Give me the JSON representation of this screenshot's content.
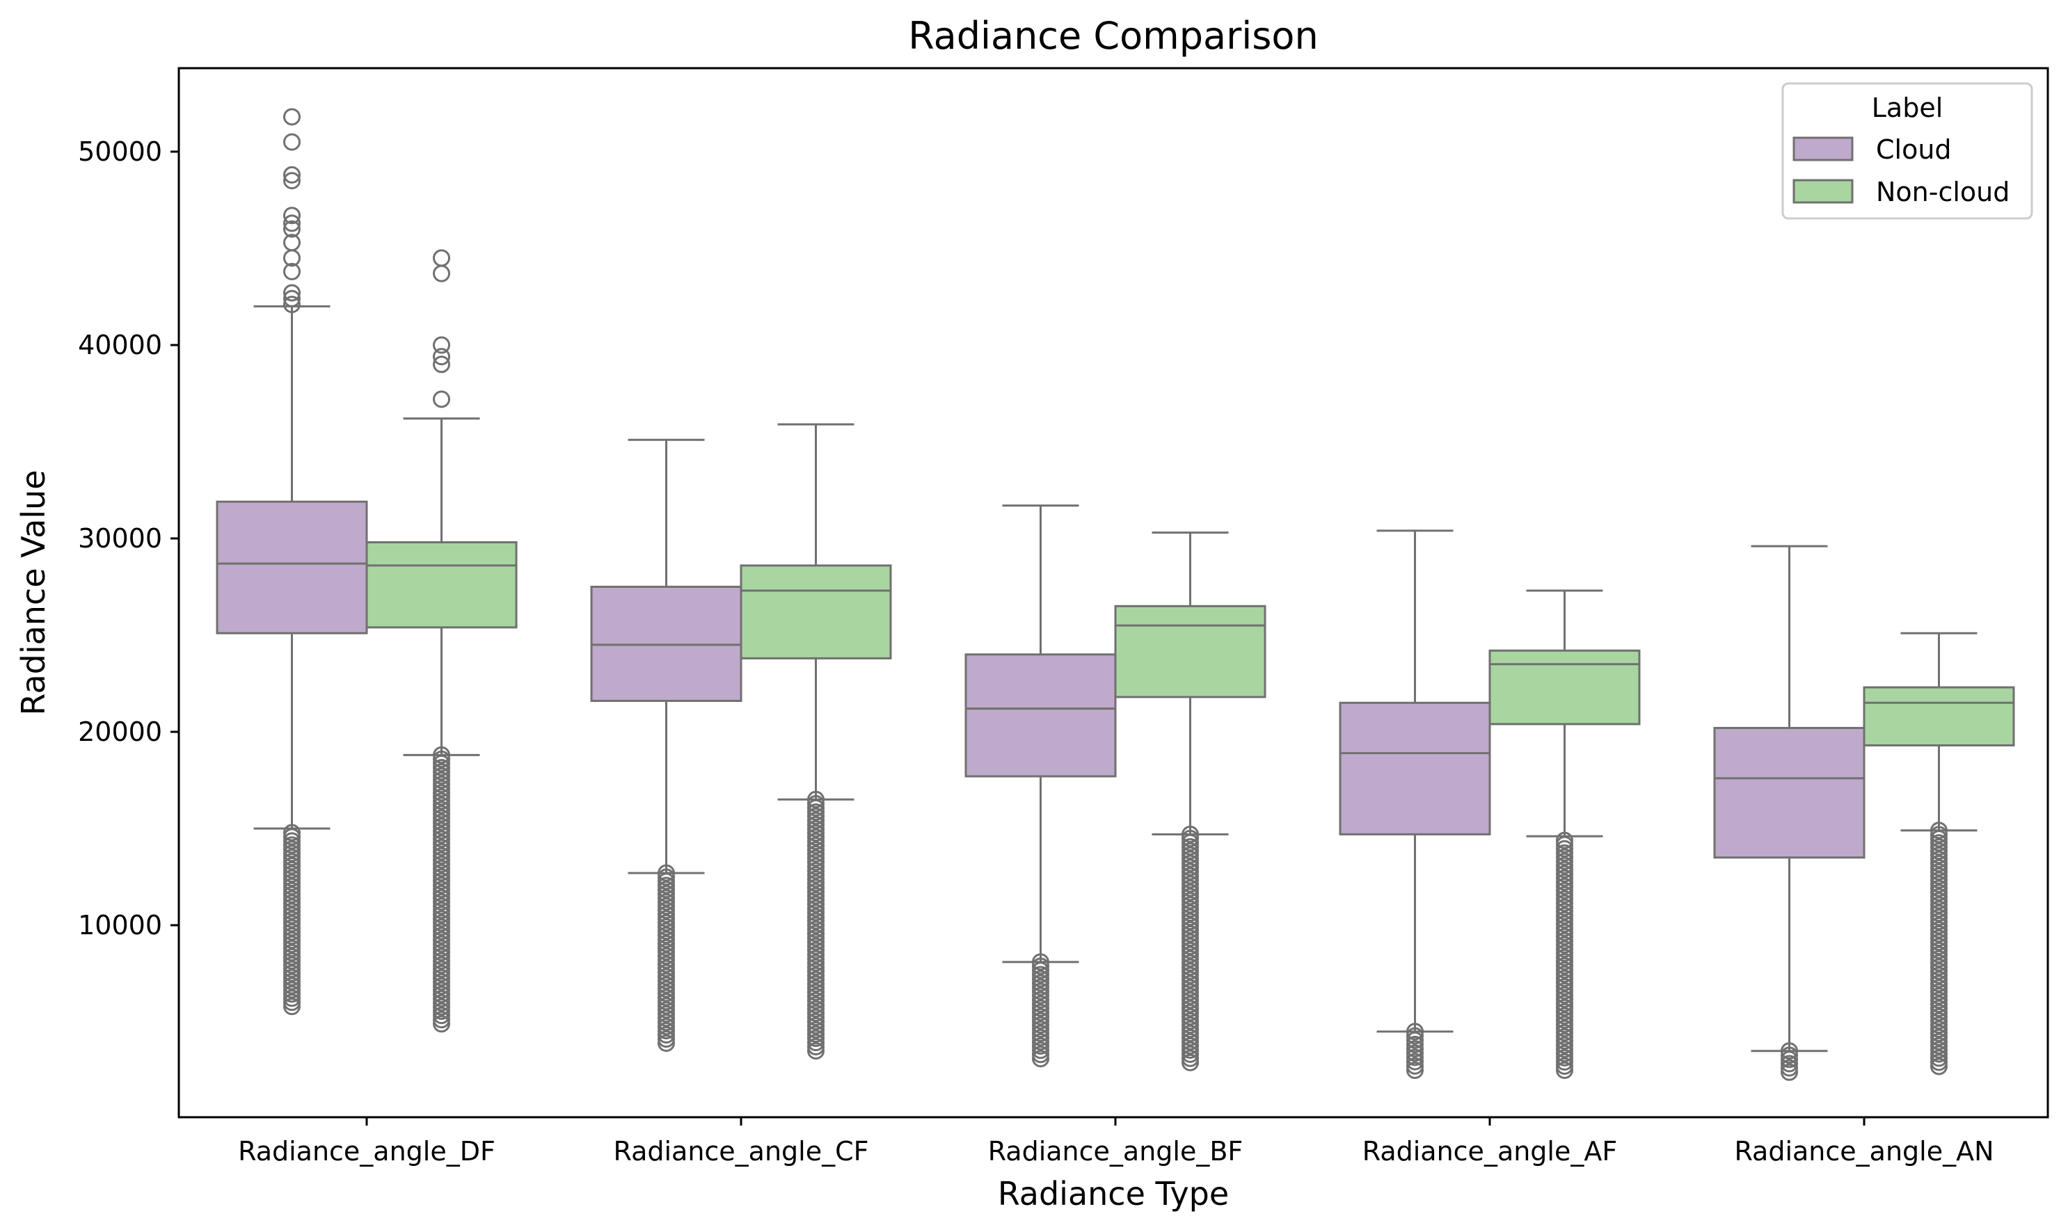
{
  "chart_data": {
    "type": "box",
    "title": "Radiance Comparison",
    "xlabel": "Radiance Type",
    "ylabel": "Radiance Value",
    "ylim": [
      0,
      54000
    ],
    "yticks": [
      10000,
      20000,
      30000,
      40000,
      50000
    ],
    "grid": false,
    "legend": {
      "title": "Label",
      "placement": "top-right"
    },
    "categories": [
      "Radiance_angle_DF",
      "Radiance_angle_CF",
      "Radiance_angle_BF",
      "Radiance_angle_AF",
      "Radiance_angle_AN"
    ],
    "series": [
      {
        "name": "Cloud",
        "color": "#bfaacb",
        "boxes": [
          {
            "whisker_low": 15000,
            "q1": 25100,
            "median": 28700,
            "q3": 31900,
            "whisker_high": 42000,
            "outliers_high": [
              42100,
              42400,
              42700,
              43800,
              44500,
              45300,
              46000,
              46300,
              46700,
              48500,
              48800,
              50500,
              51800
            ],
            "outliers_low_range": [
              5800,
              15000
            ]
          },
          {
            "whisker_low": 12700,
            "q1": 21600,
            "median": 24500,
            "q3": 27500,
            "whisker_high": 35100,
            "outliers_high": [],
            "outliers_low_range": [
              3900,
              12700
            ]
          },
          {
            "whisker_low": 8100,
            "q1": 17700,
            "median": 21200,
            "q3": 24000,
            "whisker_high": 31700,
            "outliers_high": [],
            "outliers_low_range": [
              3100,
              8100
            ]
          },
          {
            "whisker_low": 4500,
            "q1": 14700,
            "median": 18900,
            "q3": 21500,
            "whisker_high": 30400,
            "outliers_high": [],
            "outliers_low_range": [
              2500,
              4500
            ]
          },
          {
            "whisker_low": 3500,
            "q1": 13500,
            "median": 17600,
            "q3": 20200,
            "whisker_high": 29600,
            "outliers_high": [],
            "outliers_low_range": [
              2400,
              3500
            ]
          }
        ]
      },
      {
        "name": "Non-cloud",
        "color": "#a9d5a1",
        "boxes": [
          {
            "whisker_low": 18800,
            "q1": 25400,
            "median": 28600,
            "q3": 29800,
            "whisker_high": 36200,
            "outliers_high": [
              37200,
              39000,
              39400,
              40000,
              43700,
              44500
            ],
            "outliers_low_range": [
              4900,
              18800
            ]
          },
          {
            "whisker_low": 16500,
            "q1": 23800,
            "median": 27300,
            "q3": 28600,
            "whisker_high": 35900,
            "outliers_high": [],
            "outliers_low_range": [
              3500,
              16500
            ]
          },
          {
            "whisker_low": 14700,
            "q1": 21800,
            "median": 25500,
            "q3": 26500,
            "whisker_high": 30300,
            "outliers_high": [],
            "outliers_low_range": [
              2900,
              14700
            ]
          },
          {
            "whisker_low": 14600,
            "q1": 20400,
            "median": 23500,
            "q3": 24200,
            "whisker_high": 27300,
            "outliers_high": [],
            "outliers_low_range": [
              2500,
              14600
            ]
          },
          {
            "whisker_low": 14900,
            "q1": 19300,
            "median": 21500,
            "q3": 22300,
            "whisker_high": 25100,
            "outliers_high": [],
            "outliers_low_range": [
              2700,
              14900
            ]
          }
        ]
      }
    ]
  },
  "colors": {
    "cloud": "#bfaacb",
    "non_cloud": "#a9d5a1",
    "box_edge": "#707070",
    "axis": "#000000"
  }
}
